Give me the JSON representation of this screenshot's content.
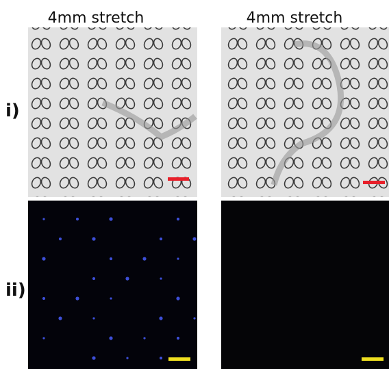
{
  "columns": [
    {
      "title": "4mm stretch"
    },
    {
      "title": "4mm stretch"
    }
  ],
  "rows": [
    {
      "label": "i)"
    },
    {
      "label": "ii)"
    }
  ]
}
